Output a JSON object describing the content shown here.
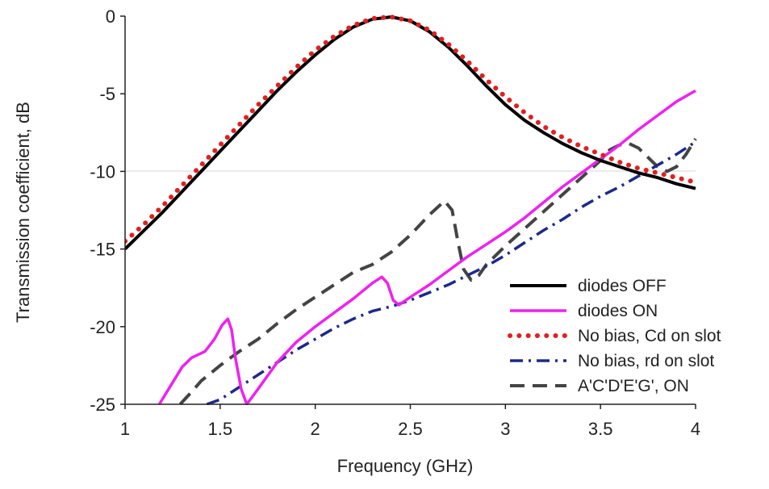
{
  "chart_data": {
    "type": "line",
    "title": "",
    "xlabel": "Frequency (GHz)",
    "ylabel": "Transmission coefficient, dB",
    "xlim": [
      1,
      4
    ],
    "ylim": [
      -25,
      0
    ],
    "xticks": [
      "1",
      "1.5",
      "2",
      "2.5",
      "3",
      "3.5",
      "4"
    ],
    "yticks": [
      "0",
      "-5",
      "-10",
      "-15",
      "-20",
      "-25"
    ],
    "grid": "horizontal line at -10 only",
    "legend_position": "lower-right",
    "series": [
      {
        "name": "diodes OFF",
        "color": "#000000",
        "style": "solid-thick",
        "points": [
          [
            1.0,
            -15.0
          ],
          [
            1.1,
            -13.8
          ],
          [
            1.2,
            -12.6
          ],
          [
            1.3,
            -11.3
          ],
          [
            1.4,
            -10.0
          ],
          [
            1.5,
            -8.7
          ],
          [
            1.6,
            -7.4
          ],
          [
            1.7,
            -6.1
          ],
          [
            1.8,
            -4.8
          ],
          [
            1.9,
            -3.6
          ],
          [
            2.0,
            -2.5
          ],
          [
            2.1,
            -1.5
          ],
          [
            2.2,
            -0.7
          ],
          [
            2.3,
            -0.2
          ],
          [
            2.4,
            -0.05
          ],
          [
            2.5,
            -0.3
          ],
          [
            2.6,
            -1.0
          ],
          [
            2.7,
            -2.0
          ],
          [
            2.8,
            -3.2
          ],
          [
            2.9,
            -4.5
          ],
          [
            3.0,
            -5.7
          ],
          [
            3.1,
            -6.7
          ],
          [
            3.2,
            -7.5
          ],
          [
            3.3,
            -8.2
          ],
          [
            3.4,
            -8.8
          ],
          [
            3.5,
            -9.3
          ],
          [
            3.6,
            -9.7
          ],
          [
            3.7,
            -10.1
          ],
          [
            3.8,
            -10.4
          ],
          [
            3.9,
            -10.8
          ],
          [
            4.0,
            -11.1
          ]
        ]
      },
      {
        "name": "diodes ON",
        "color": "#ee22ee",
        "style": "solid",
        "points": [
          [
            1.18,
            -25.0
          ],
          [
            1.25,
            -23.6
          ],
          [
            1.3,
            -22.6
          ],
          [
            1.35,
            -22.0
          ],
          [
            1.42,
            -21.6
          ],
          [
            1.47,
            -20.8
          ],
          [
            1.51,
            -19.9
          ],
          [
            1.54,
            -19.5
          ],
          [
            1.56,
            -20.2
          ],
          [
            1.58,
            -22.0
          ],
          [
            1.61,
            -24.0
          ],
          [
            1.64,
            -25.0
          ],
          [
            1.7,
            -24.0
          ],
          [
            1.8,
            -22.3
          ],
          [
            1.9,
            -21.0
          ],
          [
            2.0,
            -20.0
          ],
          [
            2.1,
            -19.1
          ],
          [
            2.2,
            -18.2
          ],
          [
            2.3,
            -17.2
          ],
          [
            2.35,
            -16.8
          ],
          [
            2.38,
            -17.2
          ],
          [
            2.41,
            -18.3
          ],
          [
            2.44,
            -18.6
          ],
          [
            2.5,
            -18.1
          ],
          [
            2.6,
            -17.3
          ],
          [
            2.7,
            -16.4
          ],
          [
            2.8,
            -15.5
          ],
          [
            2.9,
            -14.7
          ],
          [
            3.0,
            -13.9
          ],
          [
            3.1,
            -13.0
          ],
          [
            3.2,
            -12.0
          ],
          [
            3.3,
            -11.0
          ],
          [
            3.4,
            -10.1
          ],
          [
            3.5,
            -9.2
          ],
          [
            3.6,
            -8.3
          ],
          [
            3.7,
            -7.3
          ],
          [
            3.8,
            -6.4
          ],
          [
            3.9,
            -5.5
          ],
          [
            4.0,
            -4.8
          ]
        ]
      },
      {
        "name": "No bias, Cd on slot",
        "color": "#e02020",
        "style": "dotted",
        "points": [
          [
            1.0,
            -14.5
          ],
          [
            1.1,
            -13.4
          ],
          [
            1.2,
            -12.2
          ],
          [
            1.3,
            -10.9
          ],
          [
            1.4,
            -9.6
          ],
          [
            1.5,
            -8.3
          ],
          [
            1.6,
            -7.0
          ],
          [
            1.7,
            -5.7
          ],
          [
            1.8,
            -4.5
          ],
          [
            1.9,
            -3.3
          ],
          [
            2.0,
            -2.2
          ],
          [
            2.1,
            -1.3
          ],
          [
            2.2,
            -0.6
          ],
          [
            2.3,
            -0.15
          ],
          [
            2.4,
            -0.05
          ],
          [
            2.5,
            -0.3
          ],
          [
            2.6,
            -0.9
          ],
          [
            2.7,
            -1.8
          ],
          [
            2.8,
            -2.9
          ],
          [
            2.9,
            -4.1
          ],
          [
            3.0,
            -5.2
          ],
          [
            3.1,
            -6.2
          ],
          [
            3.2,
            -7.1
          ],
          [
            3.3,
            -7.8
          ],
          [
            3.4,
            -8.4
          ],
          [
            3.5,
            -8.9
          ],
          [
            3.6,
            -9.4
          ],
          [
            3.7,
            -9.8
          ],
          [
            3.8,
            -10.1
          ],
          [
            3.9,
            -10.4
          ],
          [
            4.0,
            -10.7
          ]
        ]
      },
      {
        "name": "No bias, rd on slot",
        "color": "#1c2a8a",
        "style": "dash-dot",
        "points": [
          [
            1.43,
            -25.0
          ],
          [
            1.5,
            -24.7
          ],
          [
            1.6,
            -23.9
          ],
          [
            1.7,
            -23.1
          ],
          [
            1.8,
            -22.3
          ],
          [
            1.9,
            -21.5
          ],
          [
            2.0,
            -20.8
          ],
          [
            2.1,
            -20.1
          ],
          [
            2.2,
            -19.5
          ],
          [
            2.3,
            -19.0
          ],
          [
            2.4,
            -18.7
          ],
          [
            2.5,
            -18.3
          ],
          [
            2.6,
            -17.8
          ],
          [
            2.7,
            -17.3
          ],
          [
            2.8,
            -16.7
          ],
          [
            2.9,
            -16.1
          ],
          [
            3.0,
            -15.4
          ],
          [
            3.1,
            -14.6
          ],
          [
            3.2,
            -13.8
          ],
          [
            3.3,
            -13.1
          ],
          [
            3.4,
            -12.3
          ],
          [
            3.5,
            -11.6
          ],
          [
            3.6,
            -11.0
          ],
          [
            3.7,
            -10.3
          ],
          [
            3.8,
            -9.6
          ],
          [
            3.9,
            -8.9
          ],
          [
            4.0,
            -8.1
          ]
        ]
      },
      {
        "name": "A'C'D'E'G', ON",
        "color": "#444444",
        "style": "dashed",
        "points": [
          [
            1.29,
            -25.0
          ],
          [
            1.35,
            -24.2
          ],
          [
            1.4,
            -23.5
          ],
          [
            1.5,
            -22.5
          ],
          [
            1.6,
            -21.6
          ],
          [
            1.7,
            -20.8
          ],
          [
            1.8,
            -19.8
          ],
          [
            1.9,
            -18.9
          ],
          [
            2.0,
            -18.1
          ],
          [
            2.1,
            -17.3
          ],
          [
            2.2,
            -16.5
          ],
          [
            2.3,
            -16.0
          ],
          [
            2.4,
            -15.2
          ],
          [
            2.5,
            -14.1
          ],
          [
            2.6,
            -12.8
          ],
          [
            2.68,
            -11.9
          ],
          [
            2.72,
            -12.5
          ],
          [
            2.75,
            -14.5
          ],
          [
            2.78,
            -16.3
          ],
          [
            2.82,
            -17.0
          ],
          [
            2.86,
            -16.7
          ],
          [
            2.9,
            -16.0
          ],
          [
            3.0,
            -14.8
          ],
          [
            3.1,
            -13.7
          ],
          [
            3.2,
            -12.6
          ],
          [
            3.3,
            -11.5
          ],
          [
            3.4,
            -10.4
          ],
          [
            3.5,
            -9.3
          ],
          [
            3.55,
            -8.6
          ],
          [
            3.6,
            -8.3
          ],
          [
            3.65,
            -8.2
          ],
          [
            3.7,
            -8.5
          ],
          [
            3.75,
            -9.1
          ],
          [
            3.8,
            -9.7
          ],
          [
            3.85,
            -10.0
          ],
          [
            3.9,
            -9.7
          ],
          [
            3.95,
            -8.9
          ],
          [
            4.0,
            -7.9
          ]
        ]
      }
    ]
  },
  "legend": [
    {
      "label": "diodes OFF",
      "color": "#000000",
      "style": "solid-thick"
    },
    {
      "label": "diodes ON",
      "color": "#ee22ee",
      "style": "solid"
    },
    {
      "label": "No bias, Cd on slot",
      "color": "#e02020",
      "style": "dotted"
    },
    {
      "label": "No bias, rd on slot",
      "color": "#1c2a8a",
      "style": "dash-dot"
    },
    {
      "label": "A'C'D'E'G', ON",
      "color": "#444444",
      "style": "dashed"
    }
  ]
}
